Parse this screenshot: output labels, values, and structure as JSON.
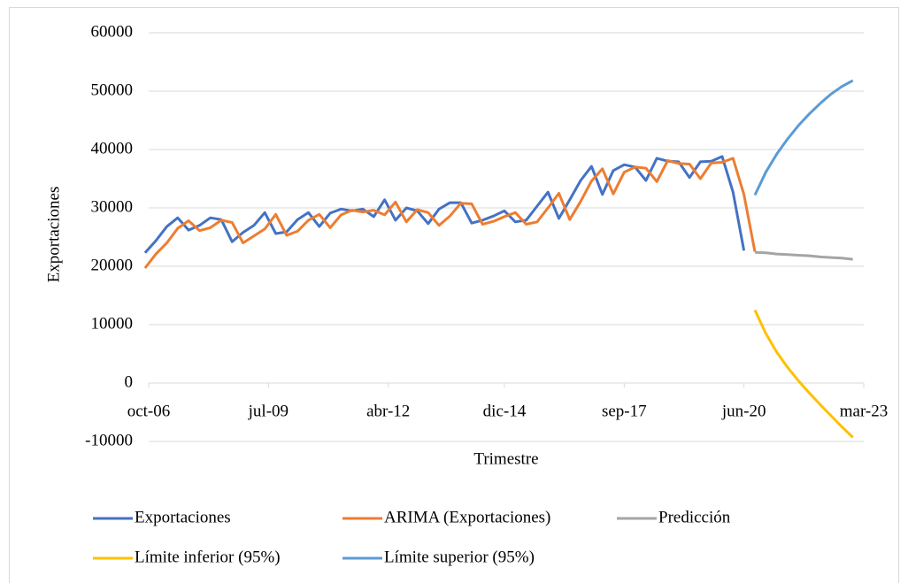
{
  "chart_data": {
    "type": "line",
    "y_label": "Exportaciones",
    "x_label": "Trimestre",
    "x": [
      "2006-09",
      "2006-12",
      "2007-03",
      "2007-06",
      "2007-09",
      "2007-12",
      "2008-03",
      "2008-06",
      "2008-09",
      "2008-12",
      "2009-03",
      "2009-06",
      "2009-09",
      "2009-12",
      "2010-03",
      "2010-06",
      "2010-09",
      "2010-12",
      "2011-03",
      "2011-06",
      "2011-09",
      "2011-12",
      "2012-03",
      "2012-06",
      "2012-09",
      "2012-12",
      "2013-03",
      "2013-06",
      "2013-09",
      "2013-12",
      "2014-03",
      "2014-06",
      "2014-09",
      "2014-12",
      "2015-03",
      "2015-06",
      "2015-09",
      "2015-12",
      "2016-03",
      "2016-06",
      "2016-09",
      "2016-12",
      "2017-03",
      "2017-06",
      "2017-09",
      "2017-12",
      "2018-03",
      "2018-06",
      "2018-09",
      "2018-12",
      "2019-03",
      "2019-06",
      "2019-09",
      "2019-12",
      "2020-03",
      "2020-06",
      "2020-09",
      "2020-12",
      "2021-03",
      "2021-06",
      "2021-09",
      "2021-12",
      "2022-03",
      "2022-06",
      "2022-09",
      "2022-12"
    ],
    "xlim": [
      "2006-10",
      "2023-03"
    ],
    "xticks": [
      {
        "value": "2006-10",
        "label": "oct-06"
      },
      {
        "value": "2009-07",
        "label": "jul-09"
      },
      {
        "value": "2012-04",
        "label": "abr-12"
      },
      {
        "value": "2014-12",
        "label": "dic-14"
      },
      {
        "value": "2017-09",
        "label": "sep-17"
      },
      {
        "value": "2020-06",
        "label": "jun-20"
      },
      {
        "value": "2023-03",
        "label": "mar-23"
      }
    ],
    "ylim": [
      -10000,
      60000
    ],
    "yticks": [
      -10000,
      0,
      10000,
      20000,
      30000,
      40000,
      50000,
      60000
    ],
    "grid": true,
    "legend": "bottom",
    "series": [
      {
        "name": "Exportaciones",
        "color": "#4472c4",
        "values": [
          22300,
          24400,
          26800,
          28300,
          26200,
          27000,
          28300,
          28000,
          24200,
          25800,
          27000,
          29200,
          25600,
          25900,
          28000,
          29200,
          26800,
          29100,
          29800,
          29500,
          29800,
          28500,
          31400,
          27900,
          30000,
          29500,
          27300,
          29800,
          30900,
          30900,
          27400,
          27900,
          28600,
          29500,
          27600,
          27900,
          30300,
          32700,
          28200,
          31400,
          34700,
          37100,
          32300,
          36400,
          37400,
          37000,
          34700,
          38500,
          38000,
          37900,
          35200,
          37900,
          38000,
          38800,
          32700,
          22700,
          null,
          null,
          null,
          null,
          null,
          null,
          null,
          null,
          null,
          null
        ]
      },
      {
        "name": "ARIMA (Exportaciones)",
        "color": "#ed7d31",
        "values": [
          19700,
          22100,
          24000,
          26500,
          27800,
          26100,
          26600,
          27900,
          27500,
          24000,
          25200,
          26400,
          28900,
          25300,
          26000,
          27900,
          28900,
          26600,
          28800,
          29600,
          29300,
          29600,
          28800,
          31000,
          27600,
          29700,
          29200,
          27000,
          28600,
          30800,
          30700,
          27200,
          27700,
          28500,
          29200,
          27200,
          27600,
          30000,
          32500,
          28000,
          31100,
          34600,
          36700,
          32400,
          36100,
          37000,
          36800,
          34500,
          38100,
          37600,
          37500,
          35000,
          37700,
          37800,
          38500,
          32300,
          22500,
          null,
          null,
          null,
          null,
          null,
          null,
          null,
          null,
          null
        ]
      },
      {
        "name": "Predicción",
        "color": "#a5a5a5",
        "values": [
          null,
          null,
          null,
          null,
          null,
          null,
          null,
          null,
          null,
          null,
          null,
          null,
          null,
          null,
          null,
          null,
          null,
          null,
          null,
          null,
          null,
          null,
          null,
          null,
          null,
          null,
          null,
          null,
          null,
          null,
          null,
          null,
          null,
          null,
          null,
          null,
          null,
          null,
          null,
          null,
          null,
          null,
          null,
          null,
          null,
          null,
          null,
          null,
          null,
          null,
          null,
          null,
          null,
          null,
          null,
          null,
          22400,
          22300,
          22100,
          22000,
          21900,
          21800,
          21600,
          21500,
          21400,
          21200
        ]
      },
      {
        "name": "Límite inferior (95%)",
        "color": "#ffc000",
        "values": [
          null,
          null,
          null,
          null,
          null,
          null,
          null,
          null,
          null,
          null,
          null,
          null,
          null,
          null,
          null,
          null,
          null,
          null,
          null,
          null,
          null,
          null,
          null,
          null,
          null,
          null,
          null,
          null,
          null,
          null,
          null,
          null,
          null,
          null,
          null,
          null,
          null,
          null,
          null,
          null,
          null,
          null,
          null,
          null,
          null,
          null,
          null,
          null,
          null,
          null,
          null,
          null,
          null,
          null,
          null,
          null,
          12500,
          8500,
          5300,
          2700,
          400,
          -1700,
          -3700,
          -5600,
          -7500,
          -9300
        ]
      },
      {
        "name": "Límite superior (95%)",
        "color": "#5b9bd5",
        "values": [
          null,
          null,
          null,
          null,
          null,
          null,
          null,
          null,
          null,
          null,
          null,
          null,
          null,
          null,
          null,
          null,
          null,
          null,
          null,
          null,
          null,
          null,
          null,
          null,
          null,
          null,
          null,
          null,
          null,
          null,
          null,
          null,
          null,
          null,
          null,
          null,
          null,
          null,
          null,
          null,
          null,
          null,
          null,
          null,
          null,
          null,
          null,
          null,
          null,
          null,
          null,
          null,
          null,
          null,
          null,
          null,
          32200,
          36100,
          39200,
          41800,
          44100,
          46100,
          47900,
          49500,
          50800,
          51800
        ]
      }
    ]
  }
}
